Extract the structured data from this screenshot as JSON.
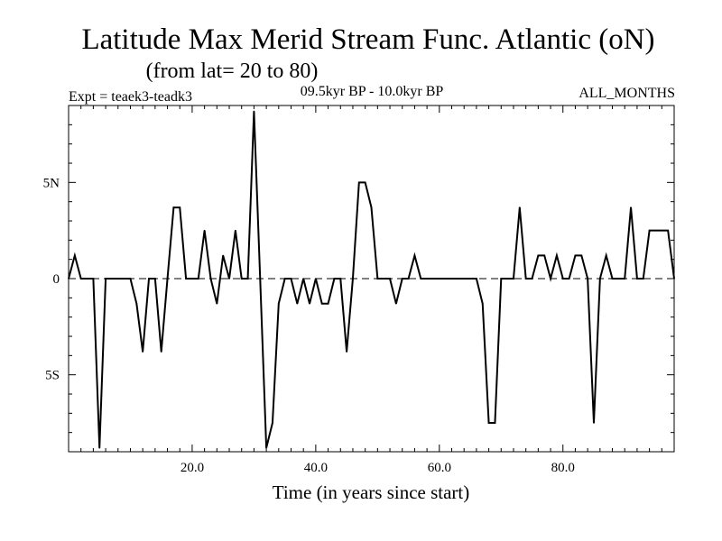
{
  "chart_data": {
    "type": "line",
    "title": "Latitude Max Merid Stream Func. Atlantic (oN)",
    "subtitle": "(from lat= 20 to 80)",
    "expt_label": "Expt = teaek3-teadk3",
    "period_label": "09.5kyr BP - 10.0kyr BP",
    "months_label": "ALL_MONTHS",
    "xlabel": "Time (in years since start)",
    "ylabel": "",
    "xlim": [
      0,
      98
    ],
    "ylim": [
      -9,
      9
    ],
    "x_ticks": [
      20,
      40,
      60,
      80
    ],
    "x_tick_labels": [
      "20.0",
      "40.0",
      "60.0",
      "80.0"
    ],
    "y_ticks": [
      5,
      0,
      -5
    ],
    "y_tick_labels": [
      "5N",
      "0",
      "5S"
    ],
    "zero_line": "dashed",
    "series": [
      {
        "name": "Max Merid Stream Func",
        "x": [
          0,
          1,
          2,
          3,
          4,
          5,
          6,
          7,
          8,
          9,
          10,
          11,
          12,
          13,
          14,
          15,
          16,
          17,
          18,
          19,
          20,
          21,
          22,
          23,
          24,
          25,
          26,
          27,
          28,
          29,
          30,
          31,
          32,
          33,
          34,
          35,
          36,
          37,
          38,
          39,
          40,
          41,
          42,
          43,
          44,
          45,
          46,
          47,
          48,
          49,
          50,
          51,
          52,
          53,
          54,
          55,
          56,
          57,
          58,
          59,
          60,
          61,
          62,
          63,
          64,
          65,
          66,
          67,
          68,
          69,
          70,
          71,
          72,
          73,
          74,
          75,
          76,
          77,
          78,
          79,
          80,
          81,
          82,
          83,
          84,
          85,
          86,
          87,
          88,
          89,
          90,
          91,
          92,
          93,
          94,
          95,
          96,
          97,
          98
        ],
        "values": [
          0,
          1.2,
          0,
          0,
          0,
          -8.8,
          0,
          0,
          0,
          0,
          0,
          -1.3,
          -3.8,
          0,
          0,
          -3.8,
          0,
          3.7,
          3.7,
          0,
          0,
          0,
          2.5,
          0,
          -1.3,
          1.2,
          0,
          2.5,
          0,
          0,
          8.7,
          0,
          -8.8,
          -7.5,
          -1.3,
          0,
          0,
          -1.3,
          0,
          -1.3,
          0,
          -1.3,
          -1.3,
          0,
          0,
          -3.8,
          0,
          5,
          5,
          3.7,
          0,
          0,
          0,
          -1.3,
          0,
          0,
          1.2,
          0,
          0,
          0,
          0,
          0,
          0,
          0,
          0,
          0,
          0,
          -1.3,
          -7.5,
          -7.5,
          0,
          0,
          0,
          3.7,
          0,
          0,
          1.2,
          1.2,
          0,
          1.2,
          0,
          0,
          1.2,
          1.2,
          0,
          -7.5,
          0,
          1.2,
          0,
          0,
          0,
          3.7,
          0,
          0,
          2.5,
          2.5,
          2.5,
          2.5,
          0
        ]
      }
    ]
  }
}
